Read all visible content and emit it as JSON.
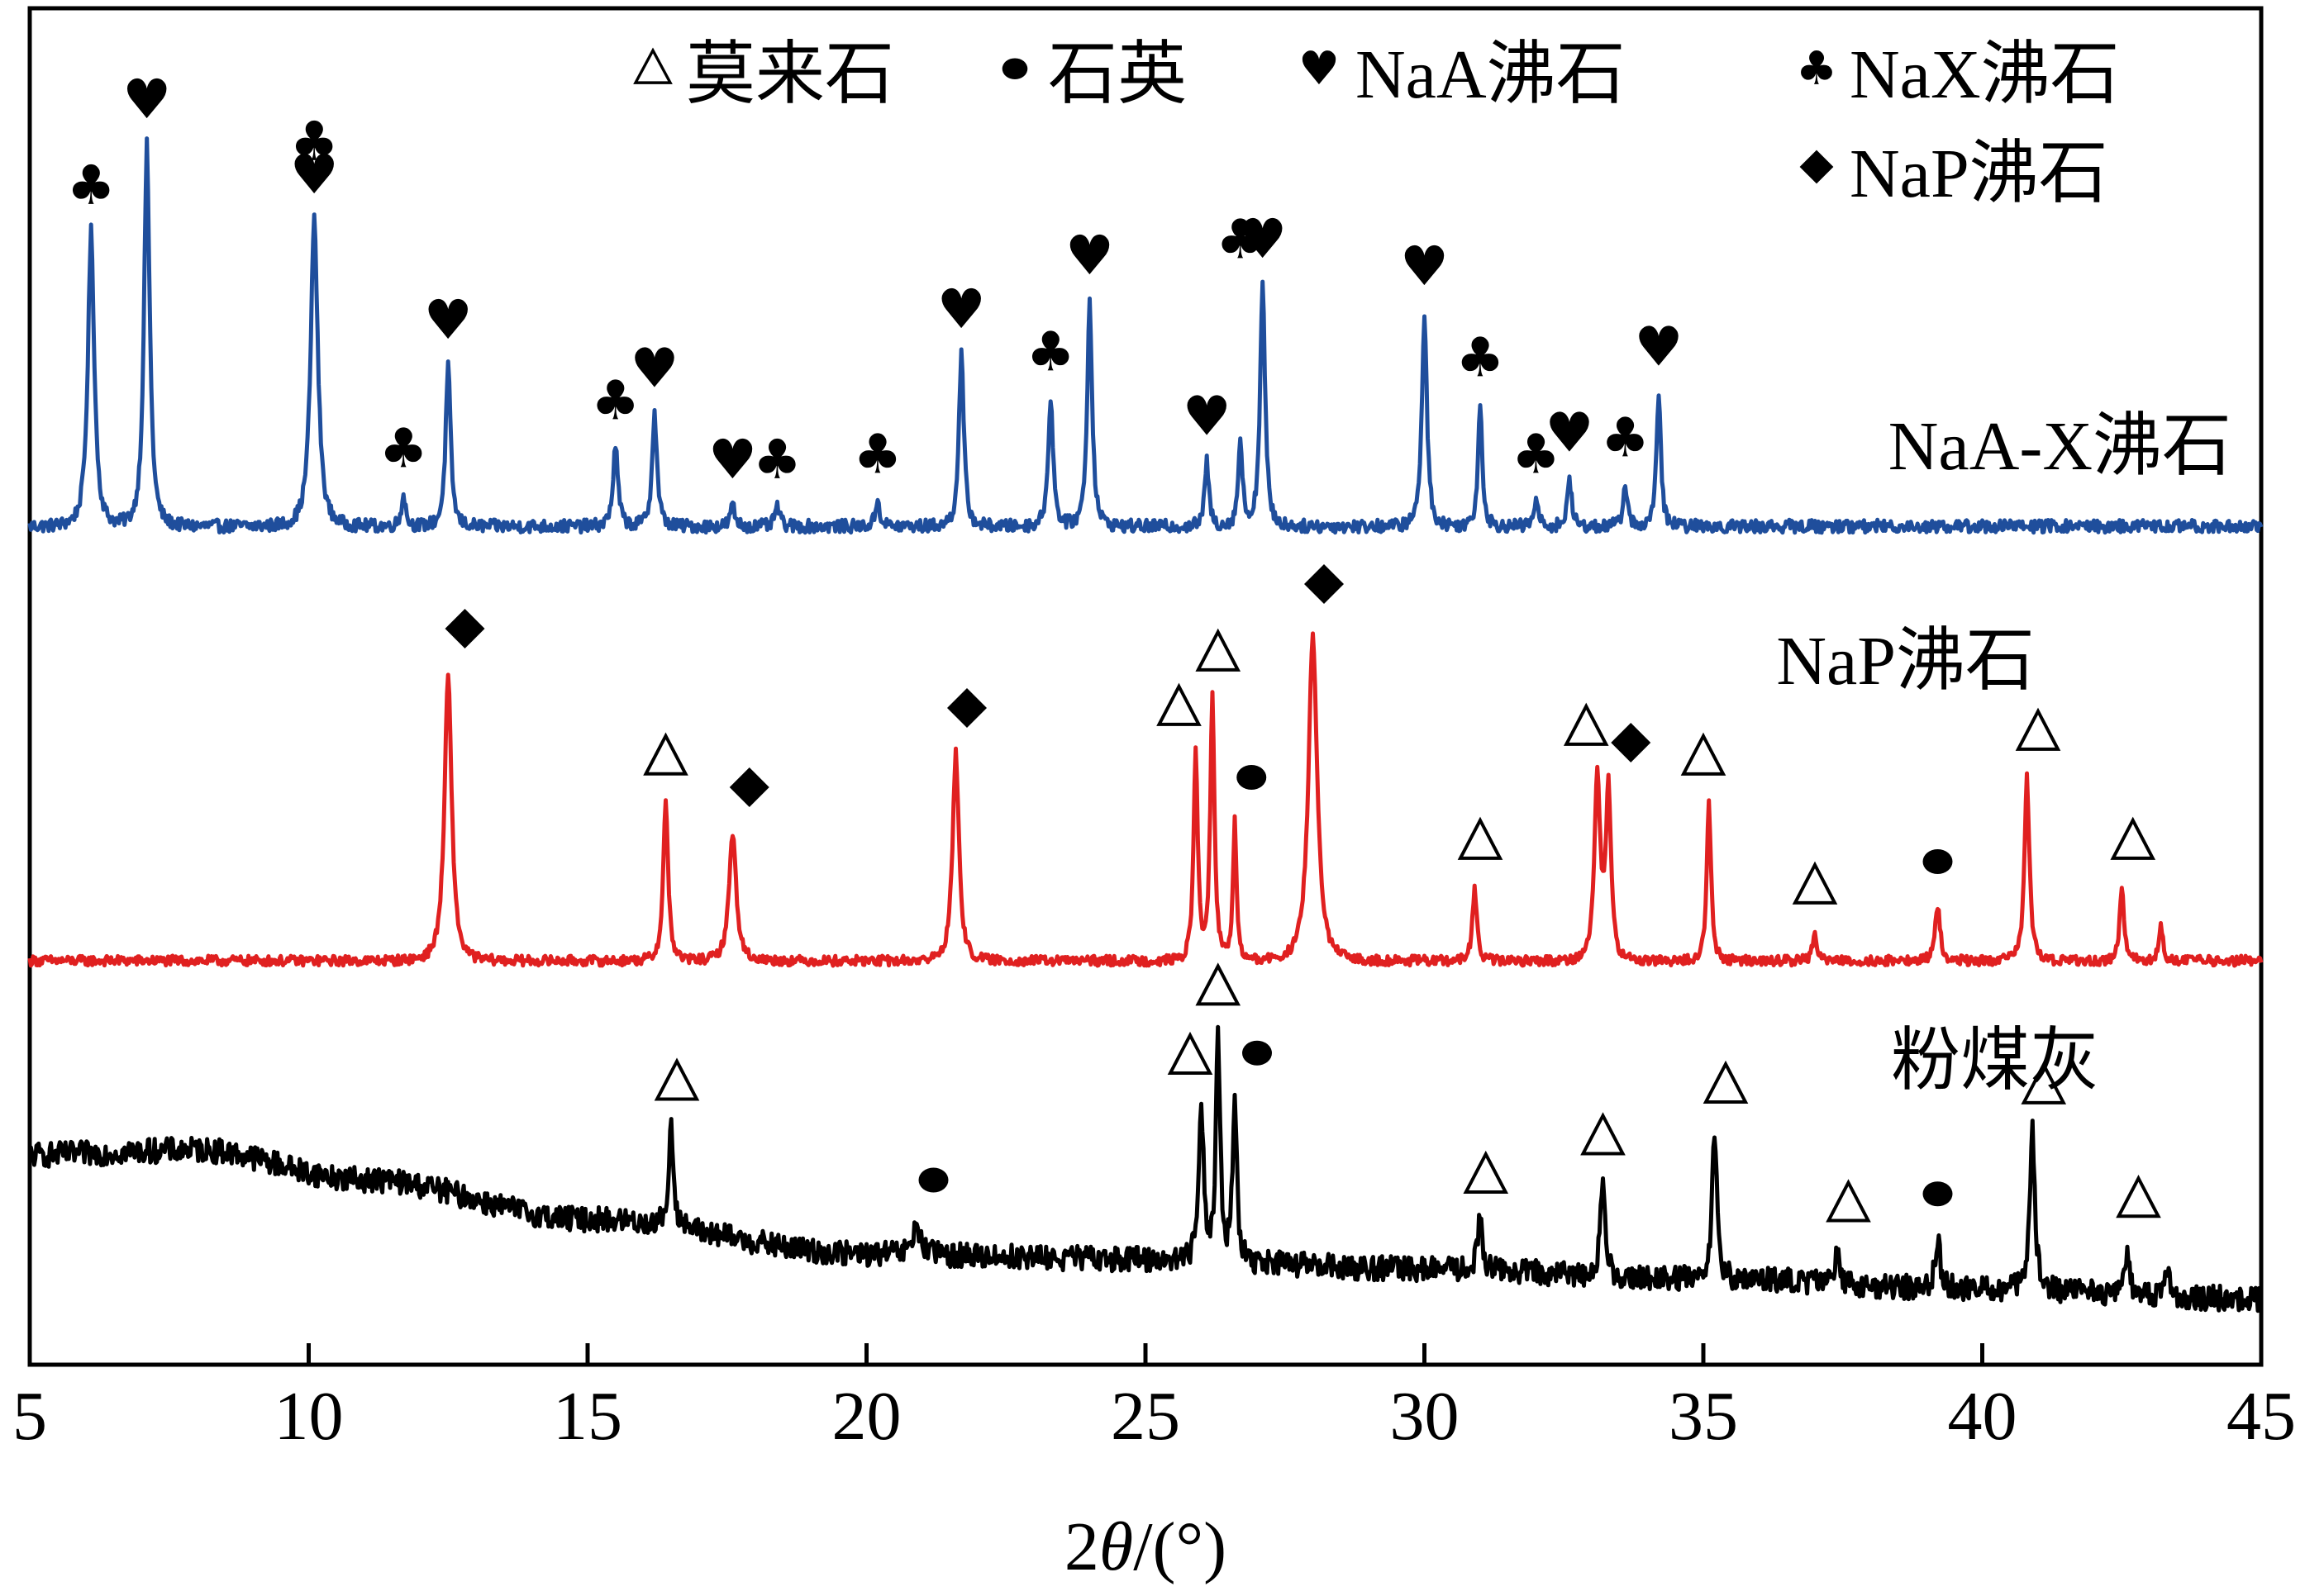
{
  "chart_data": {
    "type": "line",
    "xlabel": "2θ/(°)",
    "xlabel_parts": {
      "prefix": "2",
      "theta": "θ",
      "suffix": "/(°)"
    },
    "xlim": [
      5,
      45
    ],
    "xticks": [
      5,
      10,
      15,
      20,
      25,
      30,
      35,
      40,
      45
    ],
    "y_axis": "no tick labels (stacked offset patterns)",
    "grid": false,
    "legend_position": "top",
    "legend": [
      {
        "marker": "triangle",
        "label": "莫来石"
      },
      {
        "marker": "circle",
        "label": "石英"
      },
      {
        "marker": "heart",
        "label": "NaA沸石"
      },
      {
        "marker": "club",
        "label": "NaX沸石"
      },
      {
        "marker": "diamond",
        "label": "NaP沸石"
      }
    ],
    "series": [
      {
        "name": "NaA-X沸石",
        "color": "#1f4e9c",
        "baseline": 0.02,
        "noise": 0.012,
        "peaks": [
          {
            "x": 6.1,
            "h": 0.55,
            "w": 0.09
          },
          {
            "x": 7.1,
            "h": 0.71,
            "w": 0.08
          },
          {
            "x": 10.1,
            "h": 0.58,
            "w": 0.1
          },
          {
            "x": 11.7,
            "h": 0.06,
            "w": 0.06
          },
          {
            "x": 12.5,
            "h": 0.3,
            "w": 0.07
          },
          {
            "x": 15.5,
            "h": 0.15,
            "w": 0.07
          },
          {
            "x": 16.2,
            "h": 0.21,
            "w": 0.07
          },
          {
            "x": 17.6,
            "h": 0.04,
            "w": 0.06
          },
          {
            "x": 18.4,
            "h": 0.04,
            "w": 0.06
          },
          {
            "x": 20.2,
            "h": 0.05,
            "w": 0.06
          },
          {
            "x": 21.7,
            "h": 0.32,
            "w": 0.07
          },
          {
            "x": 23.3,
            "h": 0.24,
            "w": 0.07
          },
          {
            "x": 24.0,
            "h": 0.42,
            "w": 0.07
          },
          {
            "x": 26.1,
            "h": 0.12,
            "w": 0.06
          },
          {
            "x": 26.7,
            "h": 0.16,
            "w": 0.06
          },
          {
            "x": 27.1,
            "h": 0.45,
            "w": 0.07
          },
          {
            "x": 30.0,
            "h": 0.4,
            "w": 0.07
          },
          {
            "x": 31.0,
            "h": 0.23,
            "w": 0.06
          },
          {
            "x": 32.0,
            "h": 0.05,
            "w": 0.06
          },
          {
            "x": 32.6,
            "h": 0.09,
            "w": 0.06
          },
          {
            "x": 33.6,
            "h": 0.08,
            "w": 0.06
          },
          {
            "x": 34.2,
            "h": 0.25,
            "w": 0.06
          }
        ],
        "markers": [
          {
            "x": 6.1,
            "type": "club"
          },
          {
            "x": 7.1,
            "type": "heart"
          },
          {
            "x": 10.1,
            "type": "heart-club"
          },
          {
            "x": 11.7,
            "type": "club"
          },
          {
            "x": 12.5,
            "type": "heart"
          },
          {
            "x": 15.5,
            "type": "club"
          },
          {
            "x": 16.2,
            "type": "heart"
          },
          {
            "x": 17.6,
            "type": "heart"
          },
          {
            "x": 18.4,
            "type": "club"
          },
          {
            "x": 20.2,
            "type": "club"
          },
          {
            "x": 21.7,
            "type": "heart"
          },
          {
            "x": 23.3,
            "type": "club"
          },
          {
            "x": 24.0,
            "type": "heart"
          },
          {
            "x": 26.1,
            "type": "heart"
          },
          {
            "x": 26.7,
            "type": "club"
          },
          {
            "x": 27.1,
            "type": "heart"
          },
          {
            "x": 30.0,
            "type": "heart"
          },
          {
            "x": 31.0,
            "type": "club"
          },
          {
            "x": 32.0,
            "type": "club"
          },
          {
            "x": 32.6,
            "type": "heart"
          },
          {
            "x": 33.6,
            "type": "club"
          },
          {
            "x": 34.2,
            "type": "heart"
          }
        ]
      },
      {
        "name": "NaP沸石",
        "color": "#e02020",
        "baseline": 0.02,
        "noise": 0.01,
        "peaks": [
          {
            "x": 12.5,
            "h": 0.58,
            "w": 0.1
          },
          {
            "x": 16.4,
            "h": 0.32,
            "w": 0.07
          },
          {
            "x": 17.6,
            "h": 0.26,
            "w": 0.1
          },
          {
            "x": 21.6,
            "h": 0.42,
            "w": 0.09
          },
          {
            "x": 25.9,
            "h": 0.42,
            "w": 0.06
          },
          {
            "x": 26.2,
            "h": 0.53,
            "w": 0.06
          },
          {
            "x": 26.6,
            "h": 0.28,
            "w": 0.05
          },
          {
            "x": 28.0,
            "h": 0.67,
            "w": 0.12
          },
          {
            "x": 30.9,
            "h": 0.15,
            "w": 0.06
          },
          {
            "x": 33.1,
            "h": 0.38,
            "w": 0.08
          },
          {
            "x": 33.3,
            "h": 0.35,
            "w": 0.07
          },
          {
            "x": 35.1,
            "h": 0.32,
            "w": 0.06
          },
          {
            "x": 37.0,
            "h": 0.06,
            "w": 0.06
          },
          {
            "x": 39.2,
            "h": 0.11,
            "w": 0.07
          },
          {
            "x": 40.8,
            "h": 0.37,
            "w": 0.07
          },
          {
            "x": 42.5,
            "h": 0.15,
            "w": 0.06
          },
          {
            "x": 43.2,
            "h": 0.07,
            "w": 0.06
          }
        ],
        "markers": [
          {
            "x": 12.8,
            "type": "diamond"
          },
          {
            "x": 16.4,
            "type": "triangle"
          },
          {
            "x": 17.9,
            "type": "diamond"
          },
          {
            "x": 21.8,
            "type": "diamond"
          },
          {
            "x": 25.6,
            "type": "triangle"
          },
          {
            "x": 26.3,
            "type": "triangle"
          },
          {
            "x": 26.9,
            "type": "circle"
          },
          {
            "x": 28.2,
            "type": "diamond"
          },
          {
            "x": 31.0,
            "type": "triangle"
          },
          {
            "x": 32.9,
            "type": "triangle"
          },
          {
            "x": 33.7,
            "type": "diamond"
          },
          {
            "x": 35.0,
            "type": "triangle"
          },
          {
            "x": 37.0,
            "type": "triangle"
          },
          {
            "x": 39.2,
            "type": "circle"
          },
          {
            "x": 41.0,
            "type": "triangle"
          },
          {
            "x": 42.7,
            "type": "triangle"
          }
        ]
      },
      {
        "name": "粉煤灰",
        "color": "#000000",
        "baseline": 0.02,
        "noise": 0.025,
        "peaks": [
          {
            "x": 16.5,
            "h": 0.2,
            "w": 0.07
          },
          {
            "x": 20.9,
            "h": 0.06,
            "w": 0.1
          },
          {
            "x": 26.0,
            "h": 0.32,
            "w": 0.07
          },
          {
            "x": 26.3,
            "h": 0.45,
            "w": 0.06
          },
          {
            "x": 26.6,
            "h": 0.33,
            "w": 0.06
          },
          {
            "x": 31.0,
            "h": 0.1,
            "w": 0.07
          },
          {
            "x": 33.2,
            "h": 0.19,
            "w": 0.07
          },
          {
            "x": 35.2,
            "h": 0.3,
            "w": 0.07
          },
          {
            "x": 37.4,
            "h": 0.07,
            "w": 0.06
          },
          {
            "x": 39.2,
            "h": 0.1,
            "w": 0.07
          },
          {
            "x": 40.9,
            "h": 0.32,
            "w": 0.07
          },
          {
            "x": 42.6,
            "h": 0.1,
            "w": 0.06
          },
          {
            "x": 43.3,
            "h": 0.07,
            "w": 0.06
          }
        ],
        "background_hump": [
          {
            "x": 5,
            "y": 0.3
          },
          {
            "x": 8,
            "y": 0.31
          },
          {
            "x": 11,
            "y": 0.25
          },
          {
            "x": 15,
            "y": 0.17
          },
          {
            "x": 20,
            "y": 0.1
          },
          {
            "x": 25,
            "y": 0.09
          },
          {
            "x": 30,
            "y": 0.07
          },
          {
            "x": 35,
            "y": 0.05
          },
          {
            "x": 40,
            "y": 0.03
          },
          {
            "x": 45,
            "y": 0.01
          }
        ],
        "markers": [
          {
            "x": 16.6,
            "type": "triangle"
          },
          {
            "x": 21.2,
            "type": "circle"
          },
          {
            "x": 25.8,
            "type": "triangle"
          },
          {
            "x": 26.3,
            "type": "triangle"
          },
          {
            "x": 27.0,
            "type": "circle"
          },
          {
            "x": 31.1,
            "type": "triangle"
          },
          {
            "x": 33.2,
            "type": "triangle"
          },
          {
            "x": 35.4,
            "type": "triangle"
          },
          {
            "x": 37.6,
            "type": "triangle"
          },
          {
            "x": 39.2,
            "type": "circle"
          },
          {
            "x": 41.1,
            "type": "triangle"
          },
          {
            "x": 42.8,
            "type": "triangle"
          }
        ]
      }
    ]
  }
}
